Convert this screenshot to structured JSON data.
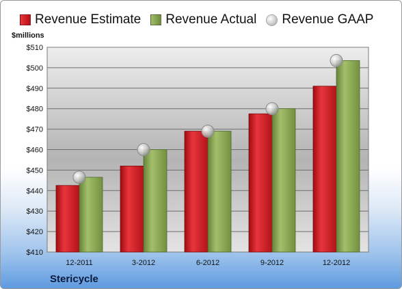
{
  "legend": {
    "estimate": "Revenue Estimate",
    "actual": "Revenue Actual",
    "gaap": "Revenue GAAP"
  },
  "units_label": "$millions",
  "company": "Stericycle",
  "colors": {
    "estimate": "#d4151e",
    "actual": "#8aa653",
    "gaap": "#c8c8c8"
  },
  "chart_data": {
    "type": "bar",
    "categories": [
      "12-2011",
      "3-2012",
      "6-2012",
      "9-2012",
      "12-2012"
    ],
    "series": [
      {
        "name": "Revenue Estimate",
        "values": [
          442.5,
          452,
          469,
          477.5,
          491
        ]
      },
      {
        "name": "Revenue Actual",
        "values": [
          446.5,
          460,
          469,
          480,
          503.5
        ]
      },
      {
        "name": "Revenue GAAP",
        "values": [
          446.5,
          460,
          469,
          480,
          503.5
        ]
      }
    ],
    "ylabel": "$millions",
    "ylim": [
      410,
      510
    ],
    "yticks": [
      410,
      420,
      430,
      440,
      450,
      460,
      470,
      480,
      490,
      500,
      510
    ],
    "ytick_labels": [
      "$410",
      "$420",
      "$430",
      "$440",
      "$450",
      "$460",
      "$470",
      "$480",
      "$490",
      "$500",
      "$510"
    ],
    "grid": true,
    "legend_position": "top"
  }
}
